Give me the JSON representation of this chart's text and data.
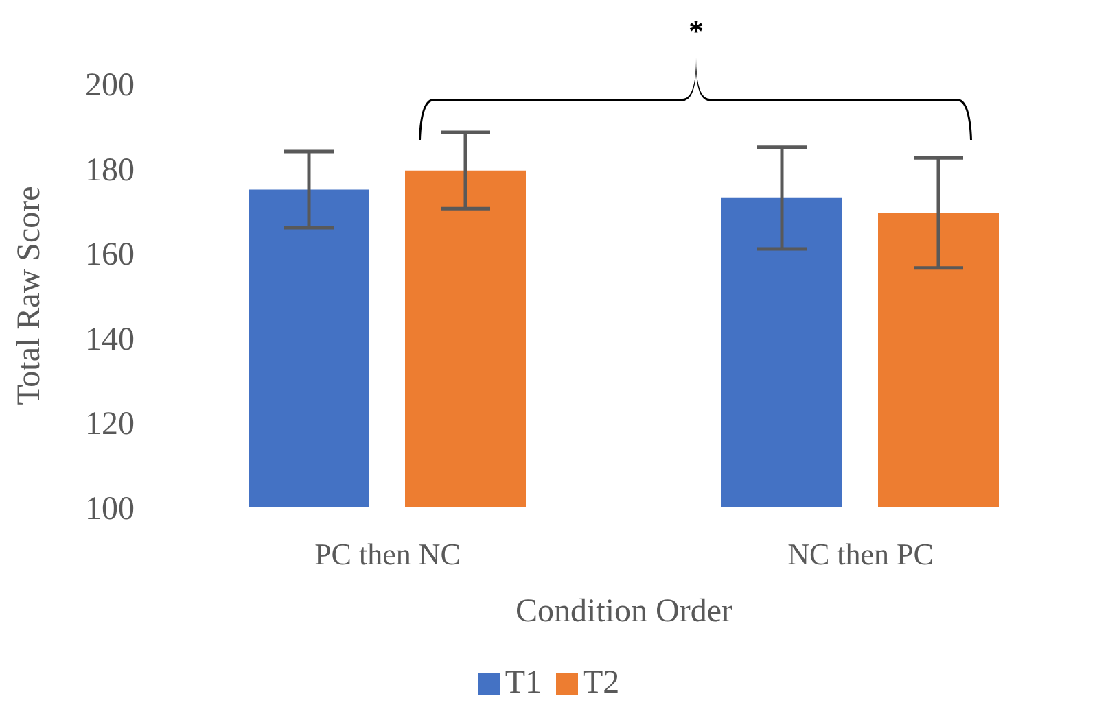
{
  "chart_data": {
    "type": "bar",
    "categories": [
      "PC then NC",
      "NC then PC"
    ],
    "xlabel": "Condition Order",
    "ylabel": "Total Raw Score",
    "ylim": [
      100,
      200
    ],
    "yticks": [
      100,
      120,
      140,
      160,
      180,
      200
    ],
    "grid": false,
    "legend": "bottom",
    "annotations": [
      "*"
    ],
    "series": [
      {
        "name": "T1",
        "color": "#4472c4",
        "values": [
          175,
          173
        ],
        "errors": [
          9,
          12
        ]
      },
      {
        "name": "T2",
        "color": "#ed7d31",
        "values": [
          179.5,
          169.5
        ],
        "errors": [
          9,
          13
        ]
      }
    ]
  }
}
